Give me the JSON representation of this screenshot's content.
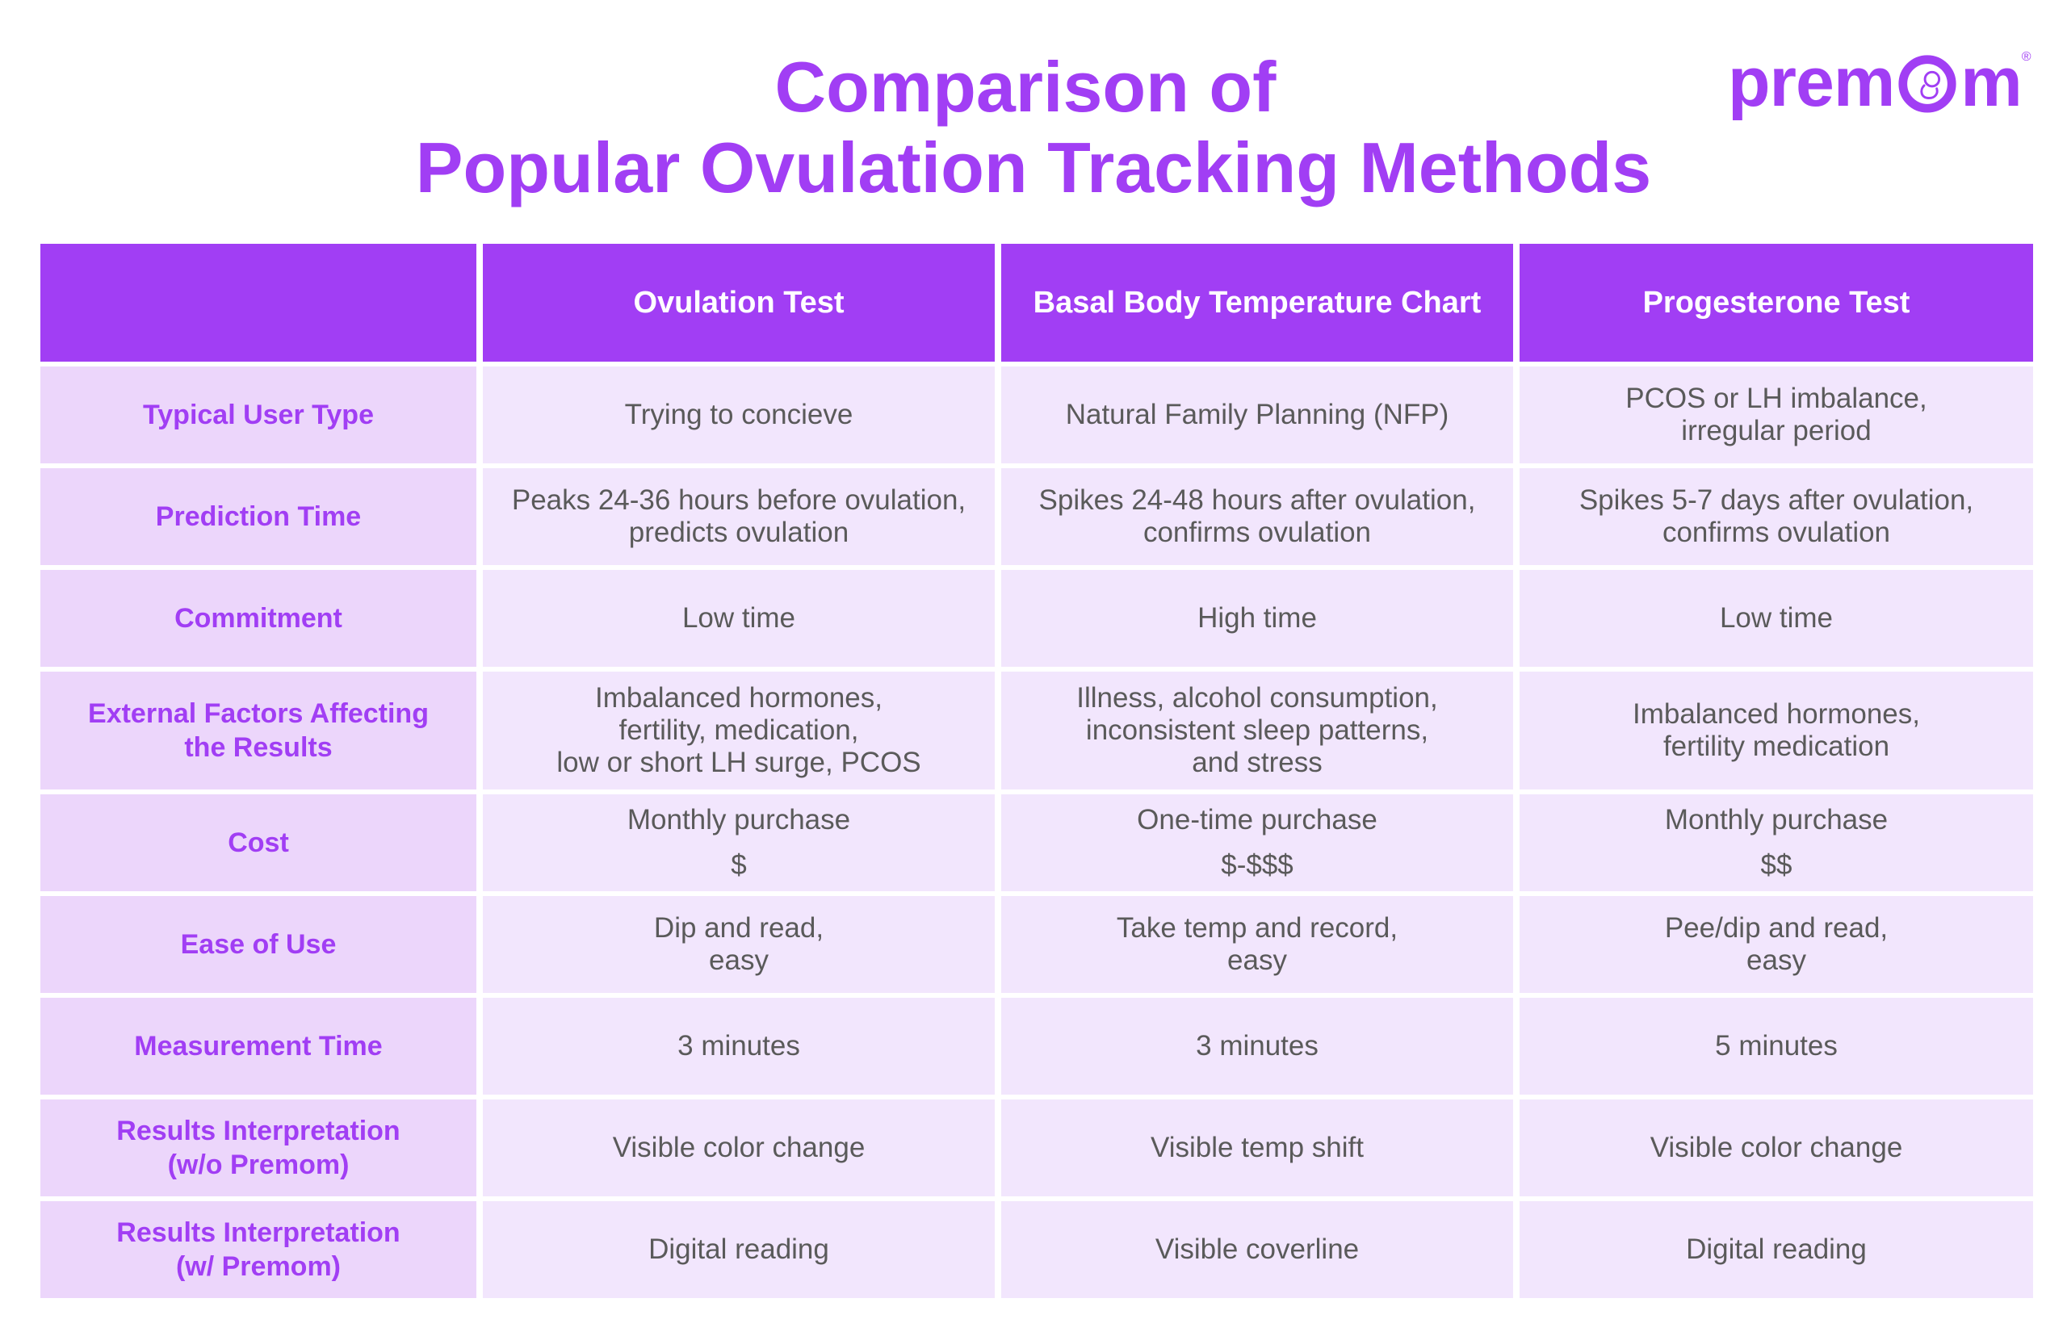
{
  "title": {
    "line1": "Comparison of",
    "line2": "Popular Ovulation Tracking Methods"
  },
  "logo": {
    "text_before": "prem",
    "text_after": "m",
    "registered": "®",
    "icon": "baby-in-o-icon",
    "color": "#a13ef4"
  },
  "colors": {
    "accent": "#a13ef4",
    "row_label_bg": "#ecd6fb",
    "cell_bg": "#f2e6fd",
    "body_text": "#5a5a5a"
  },
  "table": {
    "headers": [
      "",
      "Ovulation Test",
      "Basal Body Temperature Chart",
      "Progesterone Test"
    ],
    "rows": [
      {
        "label": [
          "Typical User Type"
        ],
        "cells": [
          [
            "Trying to concieve"
          ],
          [
            "Natural Family Planning (NFP)"
          ],
          [
            "PCOS or LH imbalance,",
            "irregular period"
          ]
        ]
      },
      {
        "label": [
          "Prediction Time"
        ],
        "cells": [
          [
            "Peaks 24-36 hours before ovulation,",
            "predicts ovulation"
          ],
          [
            "Spikes 24-48 hours after ovulation,",
            "confirms ovulation"
          ],
          [
            "Spikes 5-7 days after ovulation,",
            "confirms ovulation"
          ]
        ]
      },
      {
        "label": [
          "Commitment"
        ],
        "cells": [
          [
            "Low time"
          ],
          [
            "High time"
          ],
          [
            "Low time"
          ]
        ]
      },
      {
        "label": [
          "External Factors Affecting",
          "the Results"
        ],
        "cells": [
          [
            "Imbalanced hormones,",
            "fertility, medication,",
            "low or short LH surge, PCOS"
          ],
          [
            "Illness, alcohol consumption,",
            "inconsistent sleep patterns,",
            "and stress"
          ],
          [
            "Imbalanced hormones,",
            "fertility medication"
          ]
        ]
      },
      {
        "label": [
          "Cost"
        ],
        "cost": true,
        "cells": [
          [
            "Monthly purchase",
            "$"
          ],
          [
            "One-time purchase",
            "$-$$$"
          ],
          [
            "Monthly purchase",
            "$$"
          ]
        ]
      },
      {
        "label": [
          "Ease of Use"
        ],
        "cells": [
          [
            "Dip and read,",
            "easy"
          ],
          [
            "Take temp and record,",
            "easy"
          ],
          [
            "Pee/dip and read,",
            "easy"
          ]
        ]
      },
      {
        "label": [
          "Measurement Time"
        ],
        "cells": [
          [
            "3 minutes"
          ],
          [
            "3 minutes"
          ],
          [
            "5 minutes"
          ]
        ]
      },
      {
        "label": [
          "Results Interpretation",
          "(w/o Premom)"
        ],
        "cells": [
          [
            "Visible color change"
          ],
          [
            "Visible temp shift"
          ],
          [
            "Visible color change"
          ]
        ]
      },
      {
        "label": [
          "Results Interpretation",
          "(w/ Premom)"
        ],
        "cells": [
          [
            "Digital reading"
          ],
          [
            "Visible coverline"
          ],
          [
            "Digital reading"
          ]
        ]
      }
    ]
  }
}
